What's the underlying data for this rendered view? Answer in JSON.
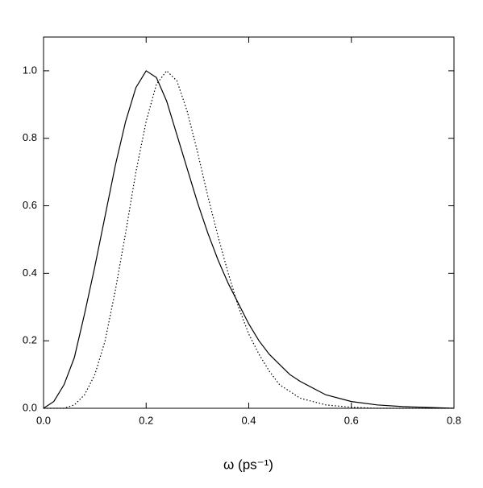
{
  "chart_data": {
    "type": "line",
    "xlabel": "ω (ps⁻¹)",
    "x": [
      0,
      0.02,
      0.04,
      0.06,
      0.08,
      0.1,
      0.12,
      0.14,
      0.16,
      0.18,
      0.2,
      0.22,
      0.24,
      0.26,
      0.28,
      0.3,
      0.32,
      0.34,
      0.36,
      0.38,
      0.4,
      0.42,
      0.44,
      0.46,
      0.48,
      0.5,
      0.55,
      0.6,
      0.65,
      0.7,
      0.8
    ],
    "series": [
      {
        "color": "#000000",
        "style": "solid",
        "values": [
          0,
          0.02,
          0.07,
          0.15,
          0.28,
          0.42,
          0.57,
          0.72,
          0.85,
          0.95,
          1.0,
          0.98,
          0.91,
          0.81,
          0.71,
          0.61,
          0.52,
          0.44,
          0.37,
          0.31,
          0.25,
          0.2,
          0.16,
          0.13,
          0.1,
          0.08,
          0.04,
          0.02,
          0.01,
          0.005,
          0
        ]
      },
      {
        "color": "#000000",
        "style": "dotted",
        "values": [
          0,
          0,
          0,
          0.01,
          0.04,
          0.1,
          0.2,
          0.35,
          0.52,
          0.7,
          0.85,
          0.96,
          1.0,
          0.97,
          0.88,
          0.76,
          0.63,
          0.51,
          0.4,
          0.3,
          0.22,
          0.16,
          0.11,
          0.07,
          0.05,
          0.03,
          0.01,
          0.003,
          0,
          0,
          0
        ]
      }
    ],
    "xlim": [
      0,
      0.8
    ],
    "xticks": [
      {
        "value": 0,
        "label": "0.0"
      },
      {
        "value": 0.2,
        "label": "0.2"
      },
      {
        "value": 0.4,
        "label": "0.4"
      },
      {
        "value": 0.6,
        "label": "0.6"
      },
      {
        "value": 0.8,
        "label": "0.8"
      }
    ],
    "ylim": [
      0,
      1.1
    ],
    "yticks": [
      {
        "value": 0,
        "label": "0.0"
      },
      {
        "value": 0.2,
        "label": "0.2"
      },
      {
        "value": 0.4,
        "label": "0.4"
      },
      {
        "value": 0.6,
        "label": "0.6"
      },
      {
        "value": 0.8,
        "label": "0.8"
      },
      {
        "value": 1.0,
        "label": "1.0"
      }
    ]
  }
}
